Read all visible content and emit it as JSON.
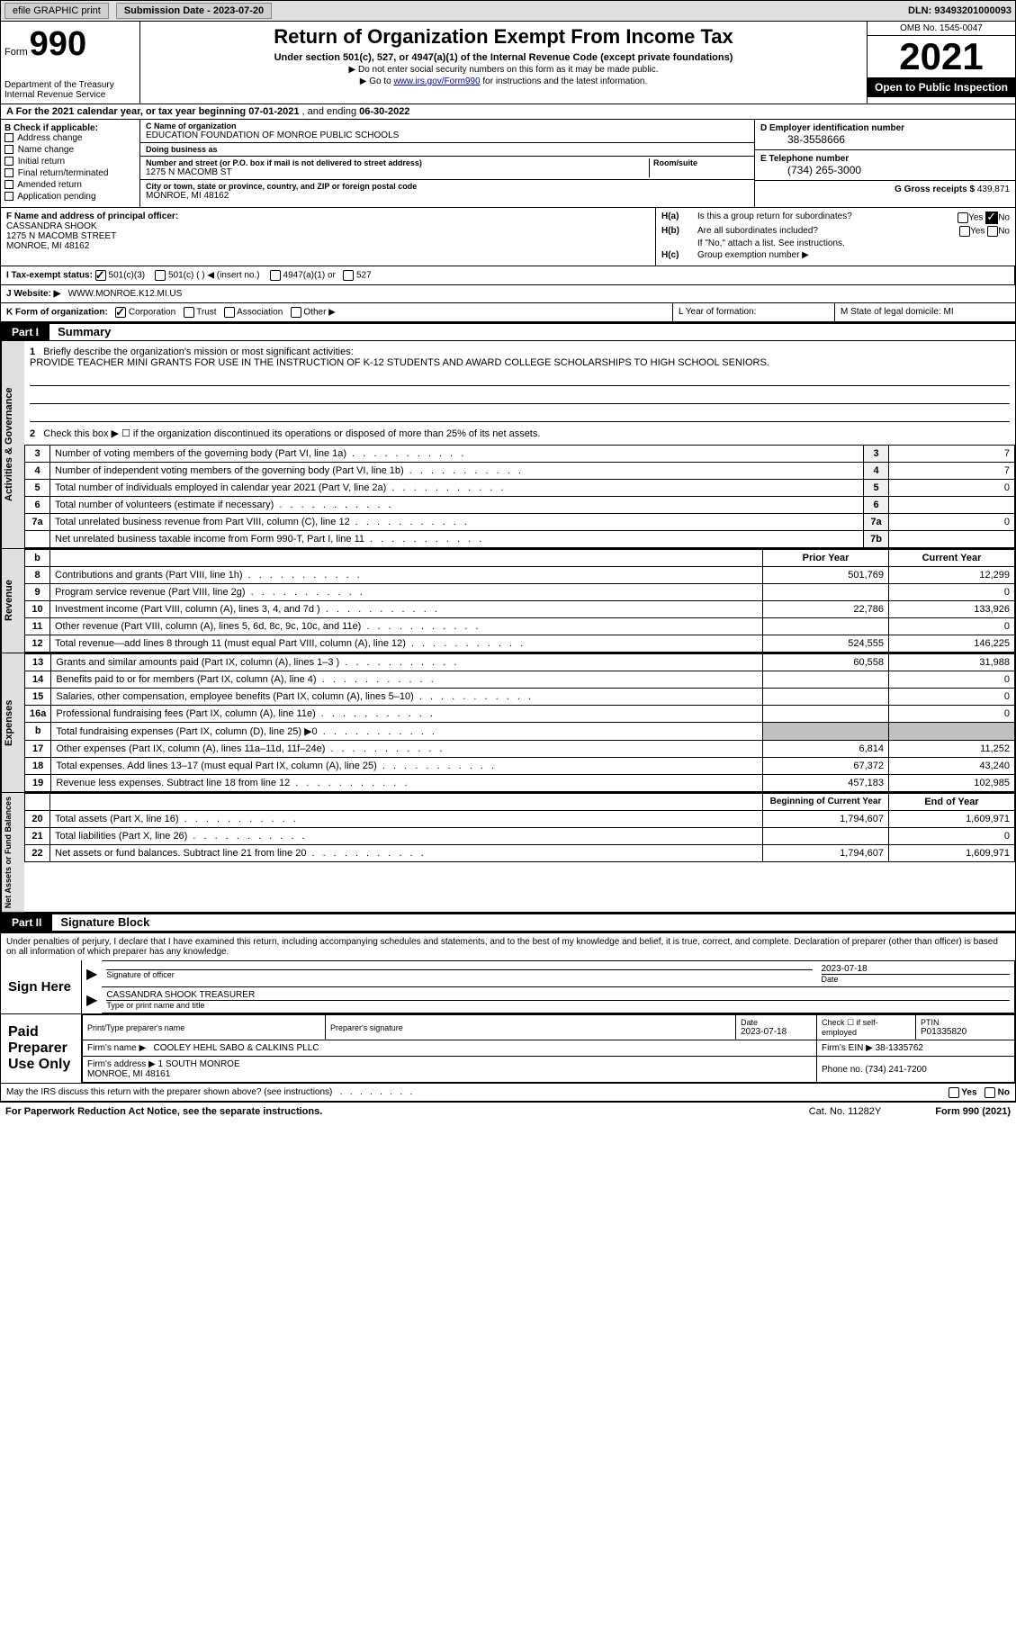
{
  "topbar": {
    "efile": "efile GRAPHIC print",
    "sub_label": "Submission Date - 2023-07-20",
    "dln": "DLN: 93493201000093"
  },
  "header": {
    "form_label": "Form",
    "form_no": "990",
    "title": "Return of Organization Exempt From Income Tax",
    "subtitle": "Under section 501(c), 527, or 4947(a)(1) of the Internal Revenue Code (except private foundations)",
    "note1": "▶ Do not enter social security numbers on this form as it may be made public.",
    "note2_pre": "▶ Go to ",
    "note2_link": "www.irs.gov/Form990",
    "note2_post": " for instructions and the latest information.",
    "dept": "Department of the Treasury\nInternal Revenue Service",
    "omb": "OMB No. 1545-0047",
    "year": "2021",
    "open": "Open to Public Inspection"
  },
  "rowA": {
    "text_pre": "A For the 2021 calendar year, or tax year beginning ",
    "begin": "07-01-2021",
    "mid": " , and ending ",
    "end": "06-30-2022"
  },
  "colB": {
    "label": "B Check if applicable:",
    "items": [
      "Address change",
      "Name change",
      "Initial return",
      "Final return/terminated",
      "Amended return",
      "Application pending"
    ]
  },
  "colC": {
    "name_lbl": "C Name of organization",
    "name": "EDUCATION FOUNDATION OF MONROE PUBLIC SCHOOLS",
    "dba_lbl": "Doing business as",
    "dba": "",
    "addr_lbl": "Number and street (or P.O. box if mail is not delivered to street address)",
    "addr": "1275 N MACOMB ST",
    "room_lbl": "Room/suite",
    "city_lbl": "City or town, state or province, country, and ZIP or foreign postal code",
    "city": "MONROE, MI  48162"
  },
  "colD": {
    "ein_lbl": "D Employer identification number",
    "ein": "38-3558666",
    "tel_lbl": "E Telephone number",
    "tel": "(734) 265-3000",
    "gross_lbl": "G Gross receipts $",
    "gross": "439,871"
  },
  "colF": {
    "lbl": "F Name and address of principal officer:",
    "name": "CASSANDRA SHOOK",
    "addr1": "1275 N MACOMB STREET",
    "addr2": "MONROE, MI  48162"
  },
  "colH": {
    "ha": "Is this a group return for subordinates?",
    "hb": "Are all subordinates included?",
    "hb_note": "If \"No,\" attach a list. See instructions.",
    "hc": "Group exemption number ▶"
  },
  "rowI": {
    "lbl": "I   Tax-exempt status:",
    "o1": "501(c)(3)",
    "o2": "501(c) (  ) ◀ (insert no.)",
    "o3": "4947(a)(1) or",
    "o4": "527"
  },
  "rowJ": {
    "lbl": "J   Website: ▶",
    "val": "WWW.MONROE.K12.MI.US"
  },
  "rowK": {
    "lbl": "K Form of organization:",
    "o1": "Corporation",
    "o2": "Trust",
    "o3": "Association",
    "o4": "Other ▶",
    "l_lbl": "L Year of formation:",
    "m_lbl": "M State of legal domicile: MI"
  },
  "part1": {
    "hdr": "Part I",
    "title": "Summary",
    "q1_lbl": "1",
    "q1": "Briefly describe the organization's mission or most significant activities:",
    "q1_text": "PROVIDE TEACHER MINI GRANTS FOR USE IN THE INSTRUCTION OF K-12 STUDENTS AND AWARD COLLEGE SCHOLARSHIPS TO HIGH SCHOOL SENIORS.",
    "q2": "Check this box ▶ ☐ if the organization discontinued its operations or disposed of more than 25% of its net assets.",
    "sideA": "Activities & Governance",
    "sideR": "Revenue",
    "sideE": "Expenses",
    "sideN": "Net Assets or Fund Balances",
    "rows_gov": [
      {
        "n": "3",
        "t": "Number of voting members of the governing body (Part VI, line 1a)",
        "bn": "3",
        "v": "7"
      },
      {
        "n": "4",
        "t": "Number of independent voting members of the governing body (Part VI, line 1b)",
        "bn": "4",
        "v": "7"
      },
      {
        "n": "5",
        "t": "Total number of individuals employed in calendar year 2021 (Part V, line 2a)",
        "bn": "5",
        "v": "0"
      },
      {
        "n": "6",
        "t": "Total number of volunteers (estimate if necessary)",
        "bn": "6",
        "v": ""
      },
      {
        "n": "7a",
        "t": "Total unrelated business revenue from Part VIII, column (C), line 12",
        "bn": "7a",
        "v": "0"
      },
      {
        "n": "",
        "t": "Net unrelated business taxable income from Form 990-T, Part I, line 11",
        "bn": "7b",
        "v": ""
      }
    ],
    "hdr_b": "b",
    "hdr_py": "Prior Year",
    "hdr_cy": "Current Year",
    "rows_rev": [
      {
        "n": "8",
        "t": "Contributions and grants (Part VIII, line 1h)",
        "py": "501,769",
        "cy": "12,299"
      },
      {
        "n": "9",
        "t": "Program service revenue (Part VIII, line 2g)",
        "py": "",
        "cy": "0"
      },
      {
        "n": "10",
        "t": "Investment income (Part VIII, column (A), lines 3, 4, and 7d )",
        "py": "22,786",
        "cy": "133,926"
      },
      {
        "n": "11",
        "t": "Other revenue (Part VIII, column (A), lines 5, 6d, 8c, 9c, 10c, and 11e)",
        "py": "",
        "cy": "0"
      },
      {
        "n": "12",
        "t": "Total revenue—add lines 8 through 11 (must equal Part VIII, column (A), line 12)",
        "py": "524,555",
        "cy": "146,225"
      }
    ],
    "rows_exp": [
      {
        "n": "13",
        "t": "Grants and similar amounts paid (Part IX, column (A), lines 1–3 )",
        "py": "60,558",
        "cy": "31,988"
      },
      {
        "n": "14",
        "t": "Benefits paid to or for members (Part IX, column (A), line 4)",
        "py": "",
        "cy": "0"
      },
      {
        "n": "15",
        "t": "Salaries, other compensation, employee benefits (Part IX, column (A), lines 5–10)",
        "py": "",
        "cy": "0"
      },
      {
        "n": "16a",
        "t": "Professional fundraising fees (Part IX, column (A), line 11e)",
        "py": "",
        "cy": "0"
      },
      {
        "n": "b",
        "t": "Total fundraising expenses (Part IX, column (D), line 25) ▶0",
        "py": "g",
        "cy": "g"
      },
      {
        "n": "17",
        "t": "Other expenses (Part IX, column (A), lines 11a–11d, 11f–24e)",
        "py": "6,814",
        "cy": "11,252"
      },
      {
        "n": "18",
        "t": "Total expenses. Add lines 13–17 (must equal Part IX, column (A), line 25)",
        "py": "67,372",
        "cy": "43,240"
      },
      {
        "n": "19",
        "t": "Revenue less expenses. Subtract line 18 from line 12",
        "py": "457,183",
        "cy": "102,985"
      }
    ],
    "hdr_bcy": "Beginning of Current Year",
    "hdr_eoy": "End of Year",
    "rows_net": [
      {
        "n": "20",
        "t": "Total assets (Part X, line 16)",
        "py": "1,794,607",
        "cy": "1,609,971"
      },
      {
        "n": "21",
        "t": "Total liabilities (Part X, line 26)",
        "py": "",
        "cy": "0"
      },
      {
        "n": "22",
        "t": "Net assets or fund balances. Subtract line 21 from line 20",
        "py": "1,794,607",
        "cy": "1,609,971"
      }
    ]
  },
  "part2": {
    "hdr": "Part II",
    "title": "Signature Block",
    "decl": "Under penalties of perjury, I declare that I have examined this return, including accompanying schedules and statements, and to the best of my knowledge and belief, it is true, correct, and complete. Declaration of preparer (other than officer) is based on all information of which preparer has any knowledge.",
    "sign_here": "Sign Here",
    "sig_officer": "Signature of officer",
    "sig_date": "2023-07-18",
    "sig_name": "CASSANDRA SHOOK  TREASURER",
    "sig_name_lbl": "Type or print name and title",
    "paid": "Paid Preparer Use Only",
    "prep_name_lbl": "Print/Type preparer's name",
    "prep_sig_lbl": "Preparer's signature",
    "prep_date_lbl": "Date",
    "prep_date": "2023-07-18",
    "prep_check": "Check ☐ if self-employed",
    "ptin_lbl": "PTIN",
    "ptin": "P01335820",
    "firm_name_lbl": "Firm's name    ▶",
    "firm_name": "COOLEY HEHL SABO & CALKINS PLLC",
    "firm_ein_lbl": "Firm's EIN ▶",
    "firm_ein": "38-1335762",
    "firm_addr_lbl": "Firm's address ▶",
    "firm_addr": "1 SOUTH MONROE\nMONROE, MI  48161",
    "firm_phone_lbl": "Phone no.",
    "firm_phone": "(734) 241-7200",
    "may_irs": "May the IRS discuss this return with the preparer shown above? (see instructions)"
  },
  "footer": {
    "l": "For Paperwork Reduction Act Notice, see the separate instructions.",
    "m": "Cat. No. 11282Y",
    "r": "Form 990 (2021)"
  }
}
